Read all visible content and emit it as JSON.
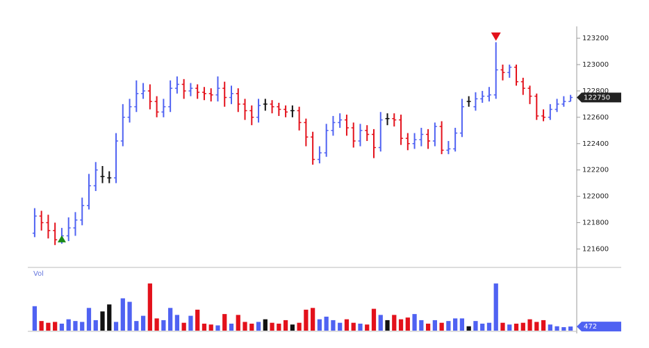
{
  "chart_data": {
    "type": "ohlc",
    "open": [
      121720,
      121850,
      121800,
      121740,
      121670,
      121700,
      121760,
      121820,
      121930,
      122080,
      122150,
      122140,
      122140,
      122420,
      122600,
      122680,
      122780,
      122800,
      122720,
      122640,
      122680,
      122820,
      122850,
      122800,
      122820,
      122790,
      122780,
      122770,
      122820,
      122750,
      122780,
      122700,
      122650,
      122600,
      122700,
      122700,
      122680,
      122660,
      122650,
      122650,
      122560,
      122450,
      122280,
      122330,
      122500,
      122560,
      122580,
      122520,
      122420,
      122500,
      122470,
      122370,
      122590,
      122590,
      122580,
      122440,
      122400,
      122430,
      122470,
      122420,
      122530,
      122350,
      122360,
      122480,
      122720,
      122680,
      122740,
      122760,
      122770,
      122960,
      122940,
      122980,
      122870,
      122820,
      122760,
      122610,
      122600,
      122660,
      122700,
      122720
    ],
    "high": [
      121910,
      121890,
      121860,
      121800,
      121760,
      121840,
      121880,
      121990,
      122170,
      122260,
      122230,
      122190,
      122480,
      122700,
      122740,
      122880,
      122860,
      122850,
      122760,
      122740,
      122880,
      122910,
      122890,
      122860,
      122850,
      122830,
      122820,
      122910,
      122870,
      122840,
      122820,
      122740,
      122690,
      122740,
      122740,
      122730,
      122710,
      122690,
      122690,
      122680,
      122590,
      122490,
      122380,
      122550,
      122610,
      122630,
      122620,
      122560,
      122550,
      122540,
      122510,
      122640,
      122630,
      122630,
      122620,
      122480,
      122480,
      122520,
      122510,
      122560,
      122570,
      122420,
      122520,
      122740,
      122760,
      122790,
      122800,
      122830,
      123170,
      123000,
      123000,
      123000,
      122900,
      122840,
      122780,
      122660,
      122700,
      122740,
      122760,
      122770
    ],
    "low": [
      121690,
      121740,
      121680,
      121630,
      121640,
      121660,
      121700,
      121780,
      121900,
      122040,
      122100,
      122100,
      122100,
      122380,
      122560,
      122640,
      122740,
      122660,
      122600,
      122600,
      122640,
      122780,
      122740,
      122760,
      122740,
      122730,
      122720,
      122720,
      122680,
      122700,
      122640,
      122580,
      122540,
      122560,
      122650,
      122630,
      122610,
      122600,
      122600,
      122500,
      122380,
      122240,
      122250,
      122300,
      122460,
      122520,
      122460,
      122370,
      122380,
      122420,
      122290,
      122340,
      122540,
      122530,
      122390,
      122350,
      122360,
      122380,
      122360,
      122380,
      122320,
      122320,
      122340,
      122450,
      122680,
      122650,
      122710,
      122720,
      122740,
      122880,
      122900,
      122840,
      122770,
      122700,
      122580,
      122570,
      122580,
      122640,
      122680,
      122720
    ],
    "close": [
      121850,
      121800,
      121740,
      121670,
      121700,
      121760,
      121820,
      121930,
      122080,
      122200,
      122150,
      122140,
      122420,
      122600,
      122680,
      122780,
      122800,
      122720,
      122640,
      122680,
      122820,
      122850,
      122800,
      122820,
      122790,
      122780,
      122770,
      122820,
      122750,
      122780,
      122700,
      122650,
      122600,
      122690,
      122700,
      122680,
      122660,
      122640,
      122650,
      122560,
      122450,
      122280,
      122330,
      122500,
      122560,
      122580,
      122520,
      122420,
      122500,
      122470,
      122370,
      122580,
      122590,
      122580,
      122440,
      122400,
      122430,
      122470,
      122420,
      122530,
      122350,
      122360,
      122480,
      122680,
      122720,
      122740,
      122760,
      122770,
      122960,
      122940,
      122980,
      122870,
      122820,
      122760,
      122610,
      122600,
      122660,
      122700,
      122720,
      122750
    ],
    "volume": [
      2800,
      1100,
      900,
      1000,
      800,
      1300,
      1100,
      1000,
      2600,
      1200,
      2200,
      3000,
      1000,
      3700,
      3300,
      1100,
      1700,
      5400,
      1400,
      1200,
      2600,
      1800,
      900,
      1700,
      2400,
      800,
      700,
      600,
      1900,
      800,
      1800,
      1000,
      800,
      1000,
      1300,
      900,
      800,
      1200,
      700,
      900,
      2400,
      2600,
      1300,
      1600,
      1200,
      900,
      1300,
      900,
      800,
      700,
      2500,
      1800,
      1200,
      1800,
      1300,
      1500,
      1900,
      1200,
      800,
      1200,
      900,
      1100,
      1400,
      1400,
      500,
      1100,
      800,
      900,
      5400,
      900,
      700,
      800,
      900,
      1300,
      1000,
      1200,
      700,
      500,
      400,
      472
    ],
    "up_color": "#4f62f2",
    "down_color": "#e3111b",
    "flat_color": "#111111",
    "ylim": [
      121460,
      123290
    ],
    "yticks": [
      121600,
      121800,
      122000,
      122200,
      122400,
      122600,
      122800,
      123000,
      123200
    ],
    "volume_label": "Vol",
    "volume_ylim": [
      0,
      7000
    ],
    "markers": [
      {
        "index": 4,
        "kind": "buy",
        "color": "#1a8a1a"
      },
      {
        "index": 68,
        "kind": "sell",
        "color": "#e3111b"
      }
    ],
    "grid": false
  }
}
